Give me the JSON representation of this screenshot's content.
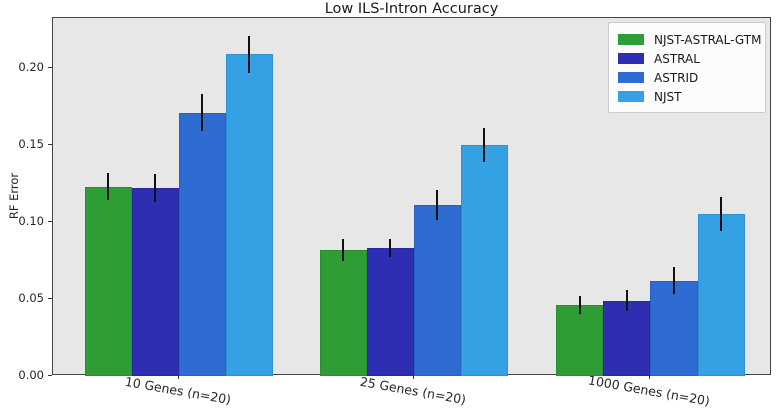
{
  "chart_data": {
    "type": "bar",
    "title": "Low ILS-Intron Accuracy",
    "xlabel": "",
    "ylabel": "RF Error",
    "categories": [
      "10 Genes (n=20)",
      "25 Genes (n=20)",
      "1000 Genes (n=20)"
    ],
    "series": [
      {
        "name": "NJST-ASTRAL-GTM",
        "color": "#2f9d35",
        "values": [
          0.123,
          0.082,
          0.046
        ],
        "errors": [
          0.009,
          0.007,
          0.006
        ]
      },
      {
        "name": "ASTRAL",
        "color": "#2e2eb3",
        "values": [
          0.122,
          0.083,
          0.049
        ],
        "errors": [
          0.009,
          0.006,
          0.007
        ]
      },
      {
        "name": "ASTRID",
        "color": "#2e6cd4",
        "values": [
          0.171,
          0.111,
          0.062
        ],
        "errors": [
          0.012,
          0.01,
          0.009
        ]
      },
      {
        "name": "NJST",
        "color": "#34a1e4",
        "values": [
          0.209,
          0.15,
          0.105
        ],
        "errors": [
          0.012,
          0.011,
          0.011
        ]
      }
    ],
    "ylim": [
      0,
      0.2325
    ],
    "ytick_values": [
      0,
      0.05,
      0.1,
      0.15,
      0.2
    ],
    "ytick_labels": [
      "0.00",
      "0.05",
      "0.10",
      "0.15",
      "0.20"
    ],
    "grid": false,
    "legend_position": "upper right",
    "plot_bg": "#e7e7e7",
    "error_color": "#111111",
    "group_center_fracs": [
      0.175,
      0.502,
      0.831
    ],
    "bar_width_frac": 0.0654,
    "xtick_rotation_deg": 10
  }
}
